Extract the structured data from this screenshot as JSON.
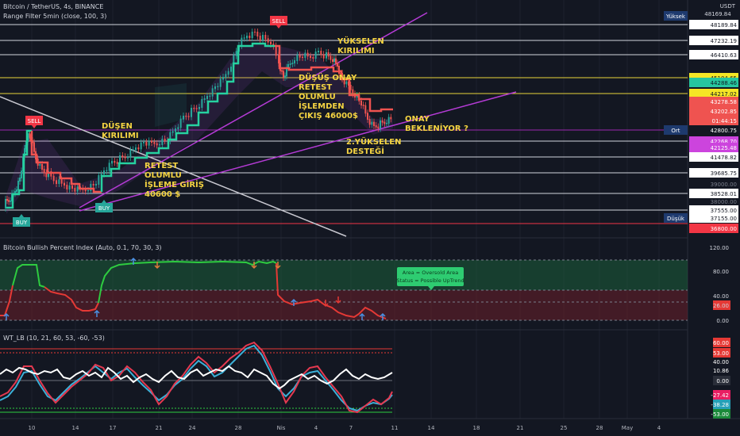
{
  "header": {
    "symbol": "Bitcoin / TetherUS, 4s, BINANCE",
    "indicator": "Range Filter 5min (close, 100, 3)",
    "currency": "USDT"
  },
  "panes": {
    "bpi_title": "Bitcoin Bullish Percent Index (Auto, 0.1, 70, 30, 3)",
    "wt_title": "WT_LB (10, 21, 60, 53, -60, -53)"
  },
  "colors": {
    "background": "#131722",
    "grid": "#1e222d",
    "resistance_line": "#d1d4dc",
    "support_line_yellow": "#e8d43a",
    "trendline_magenta": "#b53bd6",
    "bear_trend": "#b2b5be",
    "filter_up": "#26d1a0",
    "filter_down": "#ef5350",
    "annotation": "#f5d442",
    "bpi_green": "#2ecc40",
    "bpi_red": "#e53935",
    "wt_white": "#ffffff",
    "wt_red": "#e53950",
    "wt_cyan": "#3bb0d8"
  },
  "annotations": {
    "dusen_kirilimi": [
      "DÜŞEN",
      "KIRILIMI"
    ],
    "retest_giris": [
      "RETEST",
      "OLUMLU",
      "İŞLEME GİRİŞ",
      "40600 $"
    ],
    "yukselen_kirilimi": [
      "YÜKSELEN",
      "KIRILIMI"
    ],
    "dusus_onay": [
      "DÜŞÜŞ ONAY",
      "RETEST",
      "OLUMLU",
      "İŞLEMDEN",
      "ÇIKIŞ 46000$"
    ],
    "yukselen_destegi": [
      "2.YÜKSELEN",
      "DESTEĞİ"
    ],
    "onay": [
      "ONAY",
      "BEKLENİYOR ?"
    ],
    "signals": {
      "sell": "SELL",
      "buy": "BUY"
    },
    "bpi_tooltip": [
      "Area = Oversold Area",
      "Status = Possible UpTrend"
    ]
  },
  "price_axis": {
    "labels": [
      "48189.84",
      "47232.19",
      "46410.63",
      "45104.65",
      "44288.46",
      "44217.02",
      "43278.58",
      "43202.85",
      "01:44:15",
      "42800.75",
      "42268.70",
      "42125.48",
      "41478.82",
      "39685.75",
      "39000.00",
      "38528.01",
      "38000.00",
      "37555.00",
      "37155.00",
      "36800.00"
    ],
    "partial_top": "48169.84",
    "high_tag": "Yüksek",
    "avg_tag": "Ort",
    "low_tag": "Düşük"
  },
  "bpi_axis": {
    "labels": [
      "120.00",
      "80.00",
      "40.00",
      "26.00",
      "0.00"
    ]
  },
  "wt_axis": {
    "labels": [
      "60.00",
      "53.00",
      "40.00",
      "10.86",
      "0.00",
      "-27.42",
      "-38.28",
      "-53.00"
    ]
  },
  "time_axis": {
    "labels": [
      "10",
      "14",
      "17",
      "21",
      "24",
      "28",
      "Nis",
      "4",
      "7",
      "11",
      "14",
      "18",
      "21",
      "25",
      "28",
      "May",
      "4"
    ]
  },
  "chart_data": [
    {
      "type": "line",
      "title": "Bitcoin / TetherUS, 4s, BINANCE",
      "ylabel": "USDT",
      "ylim": [
        36500,
        48600
      ],
      "x_ticks": [
        "10",
        "14",
        "17",
        "21",
        "24",
        "28",
        "Nis",
        "4",
        "7",
        "11",
        "14",
        "18",
        "21",
        "25",
        "28",
        "May",
        "4"
      ],
      "series": [
        {
          "name": "Range Filter 5min (close, 100, 3)",
          "x": [
            0,
            6,
            12,
            16,
            18,
            24,
            28,
            34,
            40,
            46,
            52,
            58,
            64,
            70,
            76,
            82,
            86,
            92,
            96,
            99,
            104,
            108,
            112,
            118,
            124,
            128,
            136,
            140,
            144
          ],
          "values": [
            38200,
            39100,
            42600,
            41200,
            40100,
            39900,
            39200,
            38900,
            39500,
            40300,
            41100,
            41300,
            41700,
            42600,
            43300,
            44500,
            46800,
            47400,
            47100,
            46500,
            45500,
            45400,
            45200,
            45000,
            44300,
            43700,
            43100,
            42900,
            42700
          ]
        }
      ],
      "horizontal_levels": [
        48189.84,
        47232.19,
        46410.63,
        45104.65,
        44217.02,
        42268.7,
        41478.82,
        39685.75,
        38528.01,
        37555.0,
        36800.0
      ],
      "signals": [
        {
          "label": "SELL",
          "x": 12,
          "y": 42600
        },
        {
          "label": "BUY",
          "x": 2,
          "y": 37300
        },
        {
          "label": "BUY",
          "x": 38,
          "y": 38700
        },
        {
          "label": "SELL",
          "x": 100,
          "y": 48400
        }
      ]
    },
    {
      "type": "line",
      "title": "Bitcoin Bullish Percent Index (Auto, 0.1, 70, 30, 3)",
      "ylim": [
        -5,
        125
      ],
      "bands": {
        "overbought": 70,
        "oversold": 30
      },
      "series": [
        {
          "name": "Bitcoin Bullish Percent Index",
          "x": [
            0,
            4,
            8,
            14,
            18,
            24,
            30,
            36,
            40,
            44,
            50,
            60,
            70,
            80,
            90,
            96,
            100,
            104,
            110,
            116,
            120,
            126,
            132,
            136,
            140
          ],
          "values": [
            4,
            8,
            88,
            85,
            55,
            52,
            45,
            30,
            22,
            60,
            90,
            92,
            95,
            93,
            94,
            92,
            95,
            30,
            22,
            18,
            14,
            6,
            10,
            4,
            6
          ]
        }
      ]
    },
    {
      "type": "line",
      "title": "WT_LB (10, 21, 60, 53, -60, -53)",
      "ylim": [
        -65,
        70
      ],
      "series": [
        {
          "name": "WT1",
          "x": [
            0,
            6,
            12,
            18,
            24,
            30,
            36,
            42,
            48,
            54,
            60,
            66,
            72,
            78,
            84,
            90,
            96,
            100,
            104,
            110,
            116,
            122,
            128,
            134,
            140,
            144
          ],
          "values": [
            -40,
            -20,
            30,
            10,
            -30,
            -50,
            -20,
            20,
            40,
            10,
            -20,
            30,
            45,
            25,
            40,
            55,
            30,
            -10,
            -30,
            -20,
            20,
            10,
            -20,
            -50,
            -40,
            -27
          ]
        },
        {
          "name": "WT2",
          "x": [
            0,
            6,
            12,
            18,
            24,
            30,
            36,
            42,
            48,
            54,
            60,
            66,
            72,
            78,
            84,
            90,
            96,
            100,
            104,
            110,
            116,
            122,
            128,
            134,
            140,
            144
          ],
          "values": [
            -35,
            -25,
            20,
            15,
            -20,
            -45,
            -28,
            10,
            32,
            18,
            -10,
            18,
            40,
            30,
            35,
            50,
            38,
            0,
            -25,
            -25,
            10,
            15,
            -10,
            -45,
            -45,
            -38
          ]
        },
        {
          "name": "Momentum",
          "x": [
            0,
            10,
            20,
            30,
            40,
            50,
            60,
            70,
            80,
            90,
            100,
            104,
            110,
            120,
            130,
            140,
            144
          ],
          "values": [
            10,
            12,
            8,
            12,
            6,
            10,
            8,
            12,
            10,
            12,
            6,
            10,
            8,
            12,
            6,
            10,
            11
          ]
        }
      ],
      "levels": [
        60,
        53,
        0,
        -53,
        -60
      ]
    }
  ]
}
